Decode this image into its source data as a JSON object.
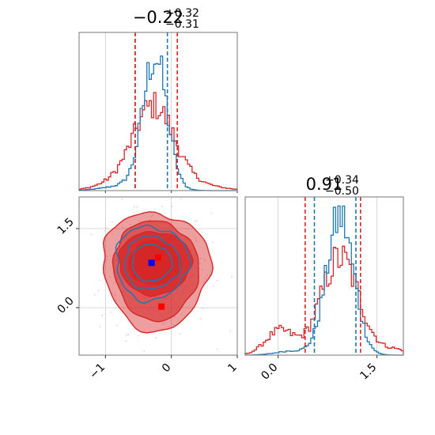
{
  "chart_data": {
    "type": "corner",
    "parameters": 2,
    "colors": {
      "series_a": "#1f77b4",
      "series_b": "#d62728",
      "grid": "#cccccc",
      "marker_a": "#0000ff",
      "marker_b": "#ff0000"
    },
    "grid": true,
    "panels": [
      {
        "id": "hist-param1",
        "type": "histogram",
        "title": {
          "main": "−0.22",
          "sup": "+0.32",
          "sub": "−0.31"
        },
        "x_range": [
          -1.4,
          1.0
        ],
        "quantile_lines": {
          "series_b": [
            -0.55,
            -0.55,
            0.09
          ],
          "series_a": [
            -0.55,
            -0.06
          ]
        }
      },
      {
        "id": "hist-param2",
        "type": "histogram",
        "title": {
          "main": "0.91",
          "sup": "+0.34",
          "sub": "−0.50"
        },
        "x_range": [
          -0.5,
          1.9
        ],
        "x_ticks": [
          "0.0",
          "1.5"
        ],
        "quantile_lines": {
          "series_b": [
            0.41,
            1.25
          ],
          "series_a": [
            0.55,
            1.18
          ]
        }
      },
      {
        "id": "contour-2d",
        "type": "contour",
        "x_range": [
          -1.4,
          1.0
        ],
        "y_range": [
          -0.9,
          2.1
        ],
        "x_ticks": [
          "−1",
          "0",
          "1"
        ],
        "y_ticks": [
          "0.0",
          "1.5"
        ],
        "markers": {
          "series_a": [
            {
              "x": -0.3,
              "y": 0.85
            }
          ],
          "series_b": [
            {
              "x": -0.2,
              "y": 0.95
            },
            {
              "x": -0.15,
              "y": 0.02
            }
          ]
        }
      }
    ]
  }
}
